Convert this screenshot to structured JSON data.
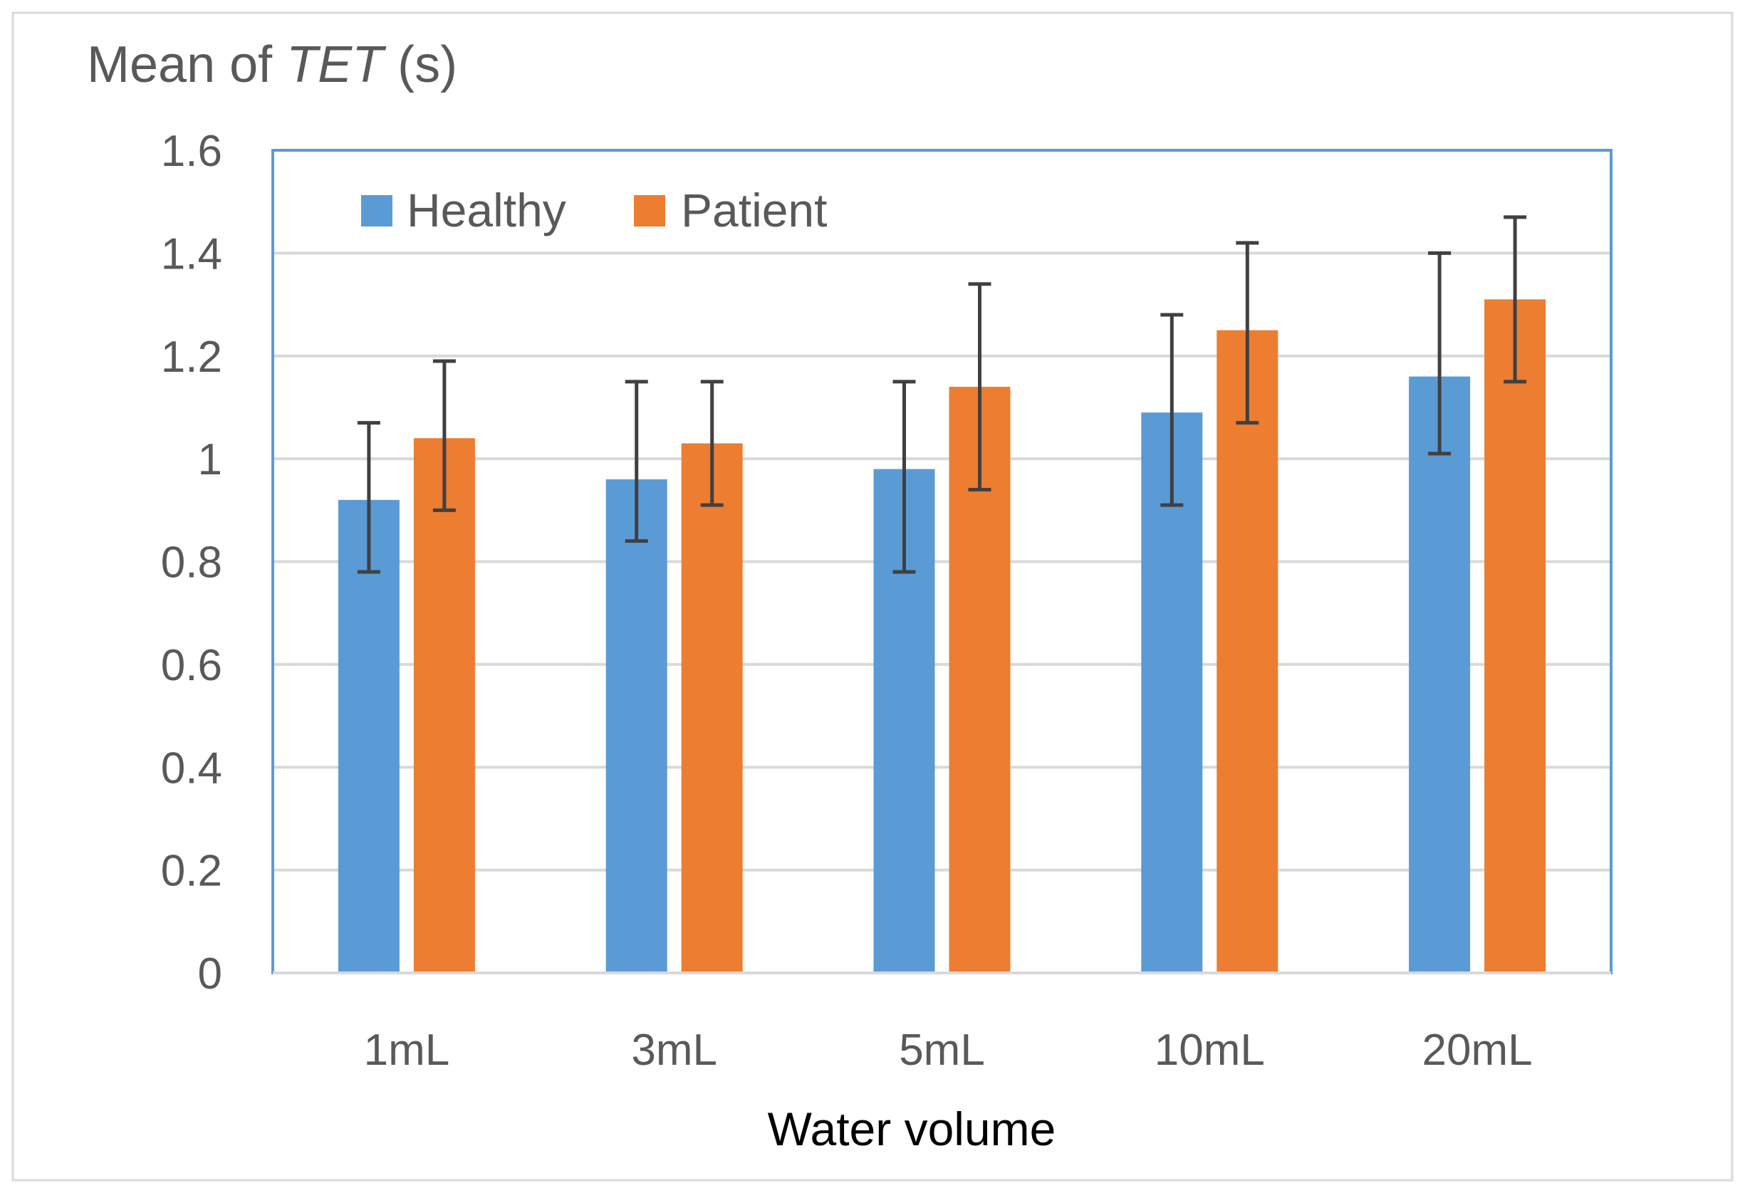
{
  "colors": {
    "healthy": "#5b9bd5",
    "patient": "#ed7d31",
    "error_bar": "#404040",
    "grid": "#d9d9d9",
    "plot_border": "#5b9bd5",
    "frame": "#d9d9d9"
  },
  "chart_data": {
    "type": "bar",
    "ylabel_parts": {
      "prefix": "Mean of ",
      "italic": "TET",
      "suffix": " (s)"
    },
    "xlabel": "Water volume",
    "categories": [
      "1mL",
      "3mL",
      "5mL",
      "10mL",
      "20mL"
    ],
    "ylim": [
      0,
      1.6
    ],
    "yticks": [
      0,
      0.2,
      0.4,
      0.6,
      0.8,
      1,
      1.2,
      1.4,
      1.6
    ],
    "ytick_labels": [
      "0",
      "0.2",
      "0.4",
      "0.6",
      "0.8",
      "1",
      "1.2",
      "1.4",
      "1.6"
    ],
    "grid": true,
    "legend_position": "top-left",
    "series": [
      {
        "name": "Healthy",
        "color": "#5b9bd5",
        "values": [
          0.92,
          0.96,
          0.98,
          1.09,
          1.16
        ],
        "error_low": [
          0.78,
          0.84,
          0.78,
          0.91,
          1.01
        ],
        "error_high": [
          1.07,
          1.15,
          1.15,
          1.28,
          1.4
        ]
      },
      {
        "name": "Patient",
        "color": "#ed7d31",
        "values": [
          1.04,
          1.03,
          1.14,
          1.25,
          1.31
        ],
        "error_low": [
          0.9,
          0.91,
          0.94,
          1.07,
          1.15
        ],
        "error_high": [
          1.19,
          1.15,
          1.34,
          1.42,
          1.47
        ]
      }
    ]
  }
}
